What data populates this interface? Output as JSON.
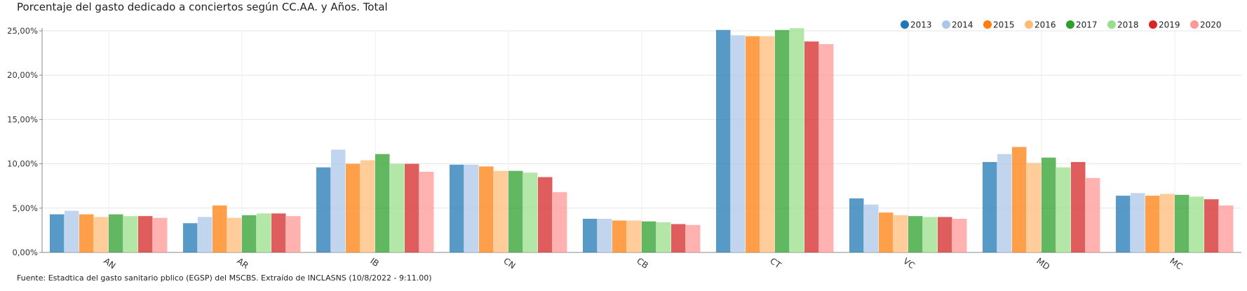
{
  "chart_data": {
    "type": "bar",
    "title": "Porcentaje del gasto dedicado a conciertos según CC.AA. y Años. Total",
    "source": "Fuente: Estadtica del gasto sanitario pblico (EGSP) del MSCBS. Extraído de INCLASNS (10/8/2022 - 9:11.00)",
    "categories": [
      "AN",
      "AR",
      "IB",
      "CN",
      "CB",
      "CT",
      "VC",
      "MD",
      "MC"
    ],
    "ylim": [
      0,
      25
    ],
    "yticks": [
      {
        "value": 0,
        "label": "0,00%"
      },
      {
        "value": 5,
        "label": "5,00%"
      },
      {
        "value": 10,
        "label": "10,00%"
      },
      {
        "value": 15,
        "label": "15,00%"
      },
      {
        "value": 20,
        "label": "20,00%"
      },
      {
        "value": 25,
        "label": "25,00%"
      }
    ],
    "grid": true,
    "legend_position": "top-right",
    "series": [
      {
        "name": "2013",
        "color": "#1f77b4",
        "values": [
          4.3,
          3.3,
          9.6,
          9.9,
          3.8,
          25.1,
          6.1,
          10.2,
          6.4
        ]
      },
      {
        "name": "2014",
        "color": "#aec7e8",
        "values": [
          4.7,
          4.0,
          11.6,
          9.9,
          3.8,
          24.5,
          5.4,
          11.1,
          6.7
        ]
      },
      {
        "name": "2015",
        "color": "#ff7f0e",
        "values": [
          4.3,
          5.3,
          10.0,
          9.7,
          3.6,
          24.4,
          4.5,
          11.9,
          6.4
        ]
      },
      {
        "name": "2016",
        "color": "#ffbb78",
        "values": [
          4.0,
          3.9,
          10.4,
          9.2,
          3.6,
          24.4,
          4.2,
          10.1,
          6.6
        ]
      },
      {
        "name": "2017",
        "color": "#2ca02c",
        "values": [
          4.3,
          4.2,
          11.1,
          9.2,
          3.5,
          25.1,
          4.1,
          10.7,
          6.5
        ]
      },
      {
        "name": "2018",
        "color": "#98df8a",
        "values": [
          4.1,
          4.4,
          10.0,
          9.0,
          3.4,
          25.3,
          4.0,
          9.6,
          6.3
        ]
      },
      {
        "name": "2019",
        "color": "#d62728",
        "values": [
          4.1,
          4.4,
          10.0,
          8.5,
          3.2,
          23.8,
          4.0,
          10.2,
          6.0
        ]
      },
      {
        "name": "2020",
        "color": "#ff9896",
        "values": [
          3.9,
          4.1,
          9.1,
          6.8,
          3.1,
          23.5,
          3.8,
          8.4,
          5.3
        ]
      }
    ]
  }
}
